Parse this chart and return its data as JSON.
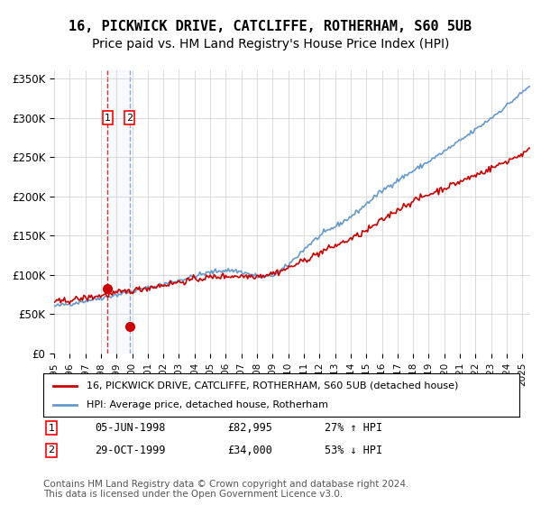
{
  "title": "16, PICKWICK DRIVE, CATCLIFFE, ROTHERHAM, S60 5UB",
  "subtitle": "Price paid vs. HM Land Registry's House Price Index (HPI)",
  "title_fontsize": 11,
  "subtitle_fontsize": 10,
  "ylim": [
    0,
    360000
  ],
  "yticks": [
    0,
    50000,
    100000,
    150000,
    200000,
    250000,
    300000,
    350000
  ],
  "ytick_labels": [
    "£0",
    "£50K",
    "£100K",
    "£150K",
    "£200K",
    "£250K",
    "£300K",
    "£350K"
  ],
  "xlim_start": 1995.0,
  "xlim_end": 2025.5,
  "hpi_color": "#6699cc",
  "price_color": "#cc0000",
  "dashed_color": "#cc0000",
  "bg_color": "#ffffff",
  "grid_color": "#cccccc",
  "sale1": {
    "date_num": 1998.43,
    "price": 82995,
    "label": "1",
    "date_str": "05-JUN-1998",
    "hpi_pct": "27% ↑ HPI"
  },
  "sale2": {
    "date_num": 1999.83,
    "price": 34000,
    "label": "2",
    "date_str": "29-OCT-1999",
    "hpi_pct": "53% ↓ HPI"
  },
  "legend_line1": "16, PICKWICK DRIVE, CATCLIFFE, ROTHERHAM, S60 5UB (detached house)",
  "legend_line2": "HPI: Average price, detached house, Rotherham",
  "footer": "Contains HM Land Registry data © Crown copyright and database right 2024.\nThis data is licensed under the Open Government Licence v3.0.",
  "footer_fontsize": 7.5
}
